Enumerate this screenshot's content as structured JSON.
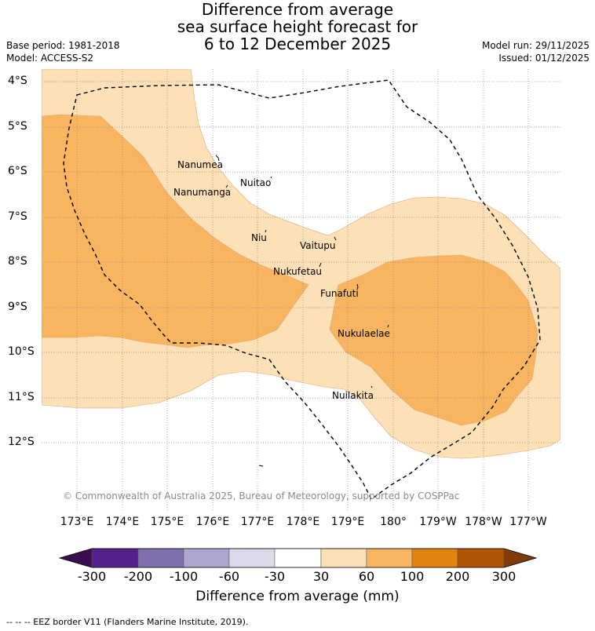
{
  "title": {
    "line1": "Difference from average",
    "line2": "sea surface height forecast for",
    "line3": "6 to 12 December 2025"
  },
  "meta": {
    "base_period": "Base period: 1981-2018",
    "model": "Model: ACCESS-S2",
    "model_run": "Model run: 29/11/2025",
    "issued": "Issued: 01/12/2025"
  },
  "latitudes": [
    "4°S",
    "5°S",
    "6°S",
    "7°S",
    "8°S",
    "9°S",
    "10°S",
    "11°S",
    "12°S"
  ],
  "longitudes": [
    "173°E",
    "174°E",
    "175°E",
    "176°E",
    "177°E",
    "178°E",
    "179°E",
    "180°",
    "179°W",
    "178°W",
    "177°W"
  ],
  "places": [
    "Nanumea",
    "Nuitao",
    "Nanumanga",
    "Niu",
    "Vaitupu",
    "Nukufetau",
    "Funafuti",
    "Nukulaelae",
    "Nuilakita"
  ],
  "copyright": "© Commonwealth of Australia 2025, Bureau of Meteorology, supported by COSPPac",
  "colorbar": {
    "labels": [
      "-300",
      "-200",
      "-100",
      "-60",
      "-30",
      "30",
      "60",
      "100",
      "200",
      "300"
    ],
    "colors": [
      "#3b0f4f",
      "#54208a",
      "#7e70ad",
      "#aea8d1",
      "#dadaeb",
      "#ffffff",
      "#fde0b5",
      "#f8b45e",
      "#e2820f",
      "#b05506",
      "#7f3b08"
    ],
    "title": "Difference from average (mm)"
  },
  "footer": "--  --  -- EEZ border V11 (Flanders Marine Institute, 2019)."
}
